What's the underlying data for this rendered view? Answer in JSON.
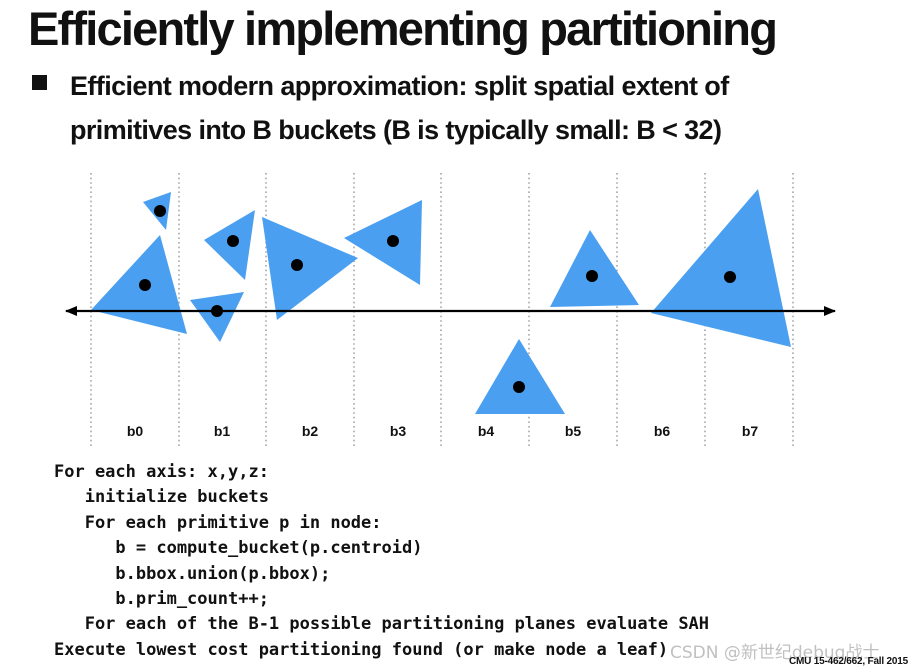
{
  "slide": {
    "title": "Efficiently implementing partitioning",
    "bullet_lines": [
      "Efficient modern approximation: split spatial extent of",
      "primitives into B buckets (B is typically small: B < 32)"
    ]
  },
  "diagram": {
    "bucket_labels": [
      "b0",
      "b1",
      "b2",
      "b3",
      "b4",
      "b5",
      "b6",
      "b7"
    ],
    "colors": {
      "primitive_fill": "#4a9ff0",
      "centroid": "#000000",
      "axis": "#000000",
      "divider": "#9a9a9a"
    },
    "primitives": [
      {
        "name": "tiny-triangle",
        "icon": "triangle-primitive"
      },
      {
        "name": "triangle-b0-large",
        "icon": "triangle-primitive"
      },
      {
        "name": "triangle-b1-upper",
        "icon": "triangle-primitive"
      },
      {
        "name": "triangle-b1-lower",
        "icon": "triangle-primitive"
      },
      {
        "name": "triangle-b2",
        "icon": "triangle-primitive"
      },
      {
        "name": "triangle-b3",
        "icon": "triangle-primitive"
      },
      {
        "name": "triangle-b4",
        "icon": "triangle-primitive"
      },
      {
        "name": "triangle-b5",
        "icon": "triangle-primitive"
      },
      {
        "name": "triangle-b6-b7-large",
        "icon": "triangle-primitive"
      }
    ]
  },
  "code": {
    "lines": [
      "For each axis: x,y,z:",
      "   initialize buckets",
      "   For each primitive p in node:",
      "      b = compute_bucket(p.centroid)",
      "      b.bbox.union(p.bbox);",
      "      b.prim_count++;",
      "   For each of the B-1 possible partitioning planes evaluate SAH",
      "Execute lowest cost partitioning found (or make node a leaf)"
    ]
  },
  "footer": {
    "course": "CMU 15-462/662, Fall 2015",
    "watermark": "CSDN @新世纪debug战士"
  }
}
